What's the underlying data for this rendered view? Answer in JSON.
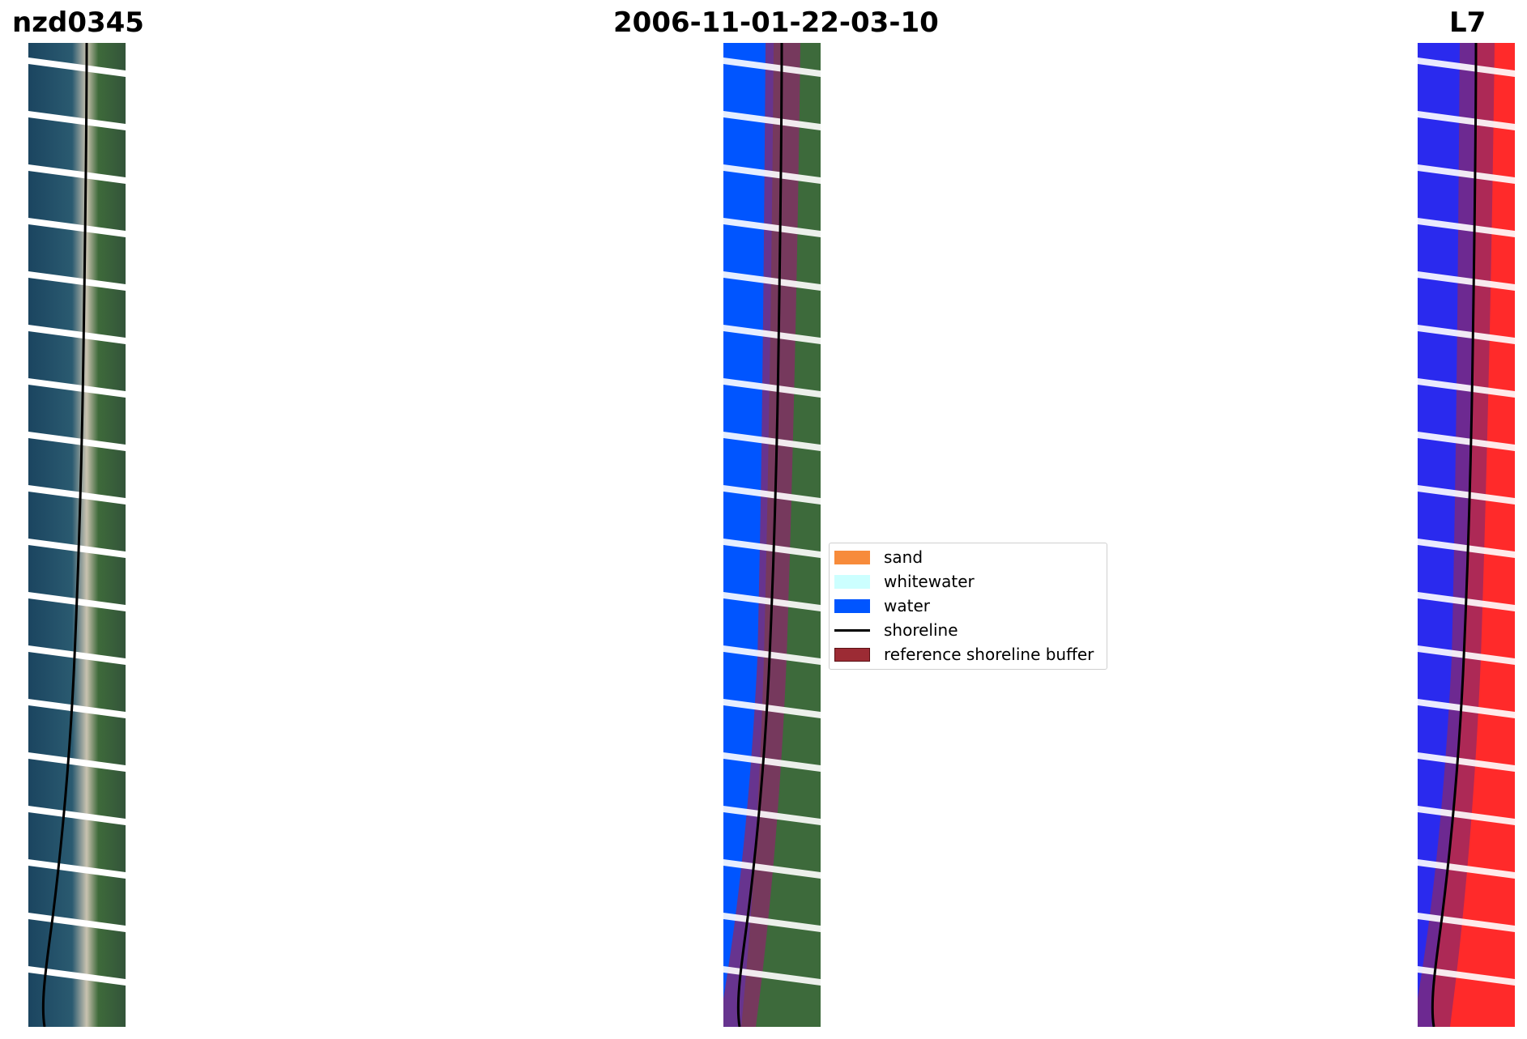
{
  "titles": {
    "site": "nzd0345",
    "date": "2006-11-01-22-03-10",
    "satellite": "L7"
  },
  "legend": {
    "items": [
      {
        "label": "sand",
        "color": "#F78B3B",
        "kind": "patch"
      },
      {
        "label": "whitewater",
        "color": "#CCFFFF",
        "kind": "patch"
      },
      {
        "label": "water",
        "color": "#0055FF",
        "kind": "patch"
      },
      {
        "label": "shoreline",
        "color": "#000000",
        "kind": "line"
      },
      {
        "label": "reference shoreline buffer",
        "color": "#9C2B34",
        "kind": "patch"
      }
    ]
  },
  "colors": {
    "sea": "#1d4a66",
    "land": "#3f6b3c",
    "classified_water": "#0055FF",
    "mndwi_water": "#2a2aee",
    "mndwi_land": "#ff2a2a",
    "buffer": "#8a2a6a",
    "scan_gap": "#ffffff"
  }
}
